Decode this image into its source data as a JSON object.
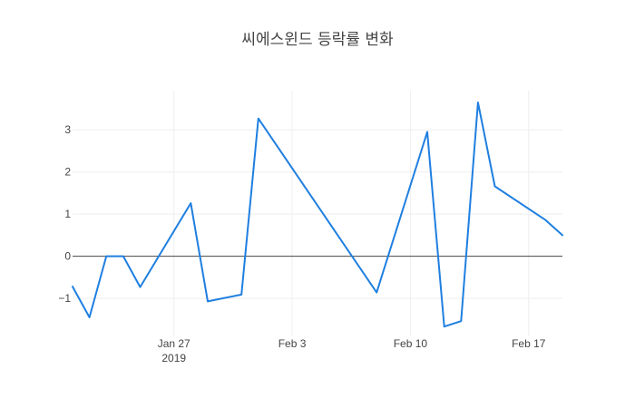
{
  "chart_data": {
    "type": "line",
    "title": "씨에스윈드 등락률 변화",
    "xlabel": "",
    "ylabel": "",
    "x": [
      "2019-01-21",
      "2019-01-22",
      "2019-01-23",
      "2019-01-24",
      "2019-01-25",
      "2019-01-28",
      "2019-01-29",
      "2019-01-31",
      "2019-02-01",
      "2019-02-08",
      "2019-02-11",
      "2019-02-12",
      "2019-02-13",
      "2019-02-14",
      "2019-02-15",
      "2019-02-18",
      "2019-02-19"
    ],
    "series": [
      {
        "values": [
          -0.72,
          -1.45,
          0.0,
          0.0,
          -0.73,
          1.26,
          -1.07,
          -0.91,
          3.27,
          -0.86,
          2.95,
          -1.67,
          -1.54,
          3.65,
          1.66,
          0.86,
          0.5
        ]
      }
    ],
    "xlim": [
      "2019-01-21",
      "2019-02-19"
    ],
    "ylim": [
      -1.88,
      3.93
    ],
    "xticks": [
      {
        "date": "2019-01-27",
        "label": "Jan 27",
        "sublabel": "2019"
      },
      {
        "date": "2019-02-03",
        "label": "Feb 3",
        "sublabel": ""
      },
      {
        "date": "2019-02-10",
        "label": "Feb 10",
        "sublabel": ""
      },
      {
        "date": "2019-02-17",
        "label": "Feb 17",
        "sublabel": ""
      }
    ],
    "yticks": [
      -1,
      0,
      1,
      2,
      3
    ],
    "ytick_labels": [
      "−1",
      "0",
      "1",
      "2",
      "3"
    ],
    "grid": true,
    "legend": false,
    "colors": {
      "line": "#1f7fe0",
      "zeroline": "#444444",
      "grid": "#eeeeee"
    }
  }
}
